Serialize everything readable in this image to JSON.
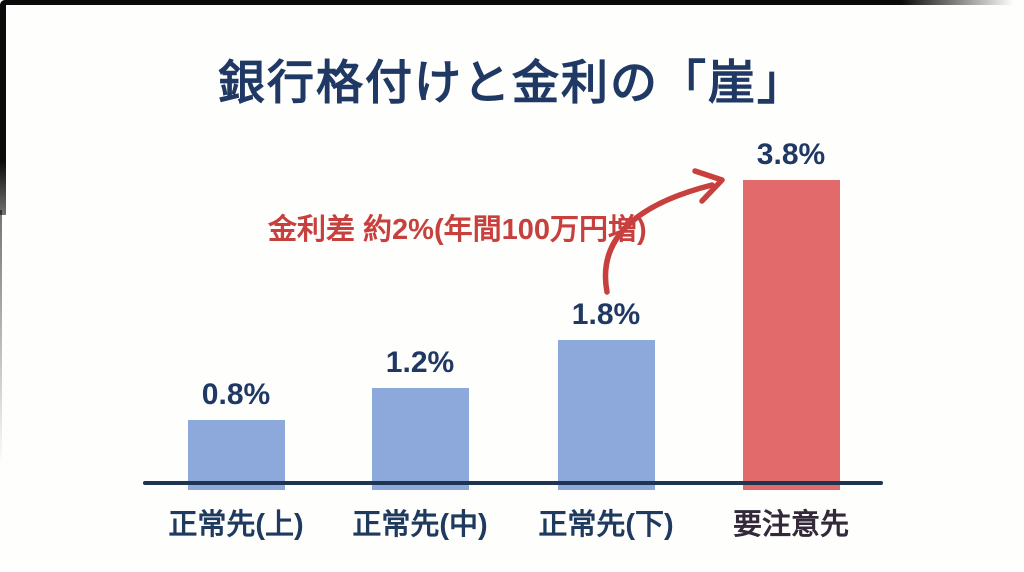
{
  "title": "銀行格付けと金利の「崖」",
  "annotation": {
    "text": "金利差 約2%(年間100万円増)",
    "color": "#c8403e"
  },
  "chart_data": {
    "type": "bar",
    "title": "銀行格付けと金利の「崖」",
    "categories": [
      "正常先(上)",
      "正常先(中)",
      "正常先(下)",
      "要注意先"
    ],
    "values": [
      0.8,
      1.2,
      1.8,
      3.8
    ],
    "value_labels": [
      "0.8%",
      "1.2%",
      "1.8%",
      "3.8%"
    ],
    "bar_colors": [
      "#8da9dc",
      "#8da9dc",
      "#8da9dc",
      "#e26a6a"
    ],
    "category_colors": [
      "#1e3a5e",
      "#1e3a5e",
      "#1e3a5e",
      "#33293a"
    ],
    "annotation": "金利差 約2%(年間100万円増)",
    "xlabel": "",
    "ylabel": "",
    "ylim": [
      0,
      4.2
    ],
    "grid": false,
    "legend": false,
    "axis_color": "#1d3452",
    "label_color": "#1f3864",
    "arrow_color": "#c8403e"
  }
}
